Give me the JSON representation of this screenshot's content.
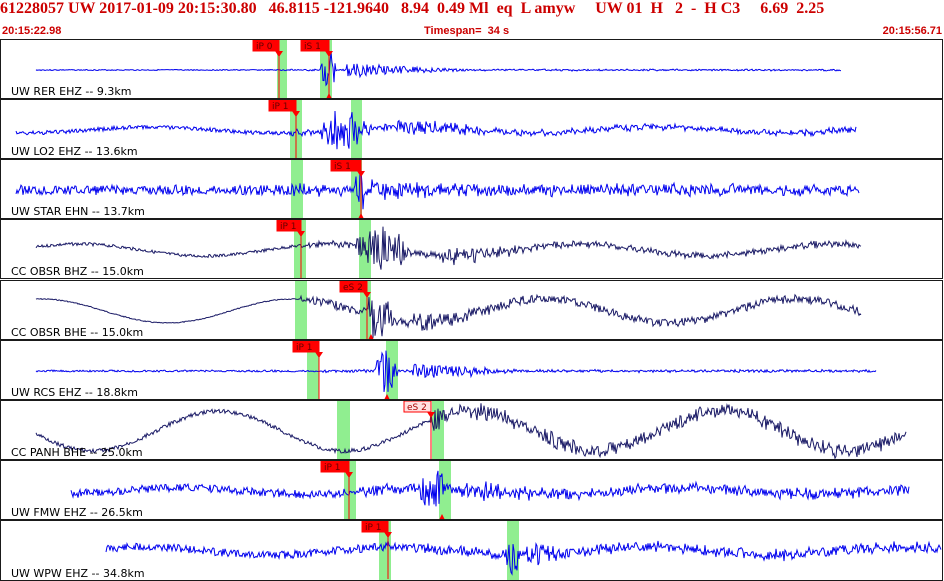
{
  "header": {
    "title_line": "61228057 UW 2017-01-09 20:15:30.80   46.8115 -121.9640   8.94  0.49 Ml  eq  L amyw     UW 01  H   2  -  H C3     6.69  2.25",
    "start_time": "20:15:22.98",
    "timespan": "Timespan=  34 s",
    "end_time": "20:15:56.71"
  },
  "colors": {
    "blue_trace": "#0000ee",
    "dark_trace": "#1a1a66",
    "pick_red": "#ff0000",
    "window_green": "#90ee90",
    "header_red": "#cc0000"
  },
  "channels": [
    {
      "label": "UW RER EHZ -- 9.3km",
      "color": "blue",
      "picks": [
        {
          "text": "iP 0",
          "style": "filled"
        },
        {
          "text": "iS 1",
          "style": "filled"
        }
      ]
    },
    {
      "label": "UW LO2 EHZ -- 13.6km",
      "color": "blue",
      "picks": [
        {
          "text": "iP 1",
          "style": "filled"
        }
      ]
    },
    {
      "label": "UW STAR EHN -- 13.7km",
      "color": "blue",
      "picks": [
        {
          "text": "iS 1",
          "style": "filled"
        }
      ]
    },
    {
      "label": "CC OBSR BHZ -- 15.0km",
      "color": "dark",
      "picks": [
        {
          "text": "iP 1",
          "style": "filled"
        }
      ]
    },
    {
      "label": "CC OBSR BHE -- 15.0km",
      "color": "dark",
      "picks": [
        {
          "text": "eS 2",
          "style": "filled"
        }
      ]
    },
    {
      "label": "UW RCS EHZ -- 18.8km",
      "color": "blue",
      "picks": [
        {
          "text": "iP 1",
          "style": "filled"
        }
      ]
    },
    {
      "label": "CC PANH BHE -- 25.0km",
      "color": "dark",
      "picks": [
        {
          "text": "eS 2",
          "style": "outline"
        }
      ]
    },
    {
      "label": "UW FMW EHZ -- 26.5km",
      "color": "blue",
      "picks": [
        {
          "text": "iP 1",
          "style": "filled"
        }
      ]
    },
    {
      "label": "UW WPW EHZ -- 34.8km",
      "color": "blue",
      "picks": [
        {
          "text": "iP 1",
          "style": "filled"
        }
      ]
    }
  ]
}
